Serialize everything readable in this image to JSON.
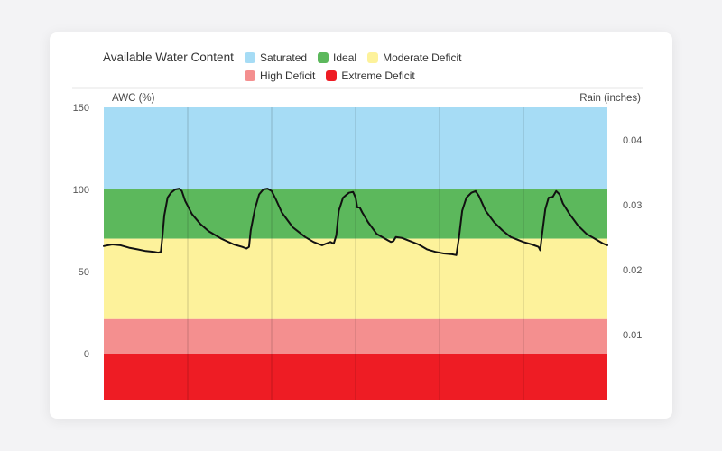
{
  "chart_data": {
    "type": "line",
    "title": "Available Water Content",
    "legend": [
      {
        "label": "Saturated",
        "color": "#a6dcf5"
      },
      {
        "label": "Ideal",
        "color": "#5cb85c"
      },
      {
        "label": "Moderate Deficit",
        "color": "#fdf29b"
      },
      {
        "label": "High Deficit",
        "color": "#f48f8f"
      },
      {
        "label": "Extreme Deficit",
        "color": "#ee1c24"
      }
    ],
    "bands": [
      {
        "label": "Saturated",
        "from": 100,
        "to": 150,
        "color": "#a6dcf5"
      },
      {
        "label": "Ideal",
        "from": 70,
        "to": 100,
        "color": "#5cb85c"
      },
      {
        "label": "Moderate Deficit",
        "from": 21,
        "to": 70,
        "color": "#fdf29b"
      },
      {
        "label": "High Deficit",
        "from": 0,
        "to": 21,
        "color": "#f48f8f"
      },
      {
        "label": "Extreme Deficit",
        "from": -28,
        "to": 0,
        "color": "#ee1c24"
      }
    ],
    "ylabel": "AWC (%)",
    "ylabel_right": "Rain (inches)",
    "ylim": [
      -28,
      150
    ],
    "ylim_right": [
      0,
      0.045
    ],
    "yticks": [
      0,
      50,
      100,
      150
    ],
    "yticks_right": [
      "0.01",
      "0.02",
      "0.03",
      "0.04"
    ],
    "xlim": [
      0,
      6
    ],
    "x_divisions": 6,
    "series": [
      {
        "color": "#111111",
        "points": [
          [
            0,
            65.5
          ],
          [
            0.1,
            66.5
          ],
          [
            0.2,
            66
          ],
          [
            0.3,
            64.5
          ],
          [
            0.4,
            63.5
          ],
          [
            0.5,
            62.5
          ],
          [
            0.6,
            62
          ],
          [
            0.65,
            61.5
          ],
          [
            0.68,
            62
          ],
          [
            0.7,
            72
          ],
          [
            0.72,
            84
          ],
          [
            0.76,
            95
          ],
          [
            0.8,
            98
          ],
          [
            0.85,
            100
          ],
          [
            0.9,
            100.5
          ],
          [
            0.93,
            99
          ],
          [
            0.97,
            93
          ],
          [
            1.05,
            85
          ],
          [
            1.15,
            79
          ],
          [
            1.25,
            74.5
          ],
          [
            1.4,
            70
          ],
          [
            1.55,
            66.5
          ],
          [
            1.65,
            65
          ],
          [
            1.7,
            64
          ],
          [
            1.73,
            65
          ],
          [
            1.75,
            75
          ],
          [
            1.8,
            88
          ],
          [
            1.85,
            97
          ],
          [
            1.9,
            100
          ],
          [
            1.95,
            100.5
          ],
          [
            2.0,
            99
          ],
          [
            2.05,
            94
          ],
          [
            2.12,
            86
          ],
          [
            2.25,
            77
          ],
          [
            2.4,
            71
          ],
          [
            2.5,
            68
          ],
          [
            2.6,
            66
          ],
          [
            2.65,
            67
          ],
          [
            2.7,
            68
          ],
          [
            2.74,
            67
          ],
          [
            2.77,
            72
          ],
          [
            2.8,
            87
          ],
          [
            2.85,
            95
          ],
          [
            2.92,
            98
          ],
          [
            2.97,
            98.5
          ],
          [
            3.0,
            95
          ],
          [
            3.02,
            89
          ],
          [
            3.05,
            89
          ],
          [
            3.08,
            86
          ],
          [
            3.15,
            80
          ],
          [
            3.25,
            73
          ],
          [
            3.35,
            70
          ],
          [
            3.42,
            68
          ],
          [
            3.45,
            68.5
          ],
          [
            3.48,
            71
          ],
          [
            3.55,
            70.5
          ],
          [
            3.65,
            68.5
          ],
          [
            3.75,
            66.5
          ],
          [
            3.85,
            63.5
          ],
          [
            3.95,
            62
          ],
          [
            4.05,
            61
          ],
          [
            4.15,
            60.5
          ],
          [
            4.2,
            60
          ],
          [
            4.23,
            70
          ],
          [
            4.27,
            87
          ],
          [
            4.32,
            95
          ],
          [
            4.38,
            98
          ],
          [
            4.43,
            99
          ],
          [
            4.47,
            96
          ],
          [
            4.55,
            87
          ],
          [
            4.65,
            80
          ],
          [
            4.75,
            75
          ],
          [
            4.85,
            71
          ],
          [
            5.0,
            68
          ],
          [
            5.1,
            66.5
          ],
          [
            5.18,
            65
          ],
          [
            5.2,
            63
          ],
          [
            5.22,
            72
          ],
          [
            5.26,
            88
          ],
          [
            5.3,
            95
          ],
          [
            5.35,
            95.5
          ],
          [
            5.39,
            99
          ],
          [
            5.43,
            97
          ],
          [
            5.47,
            91.5
          ],
          [
            5.55,
            85
          ],
          [
            5.65,
            78
          ],
          [
            5.75,
            73
          ],
          [
            5.85,
            70
          ],
          [
            5.95,
            67
          ],
          [
            6.0,
            66
          ]
        ]
      }
    ]
  }
}
